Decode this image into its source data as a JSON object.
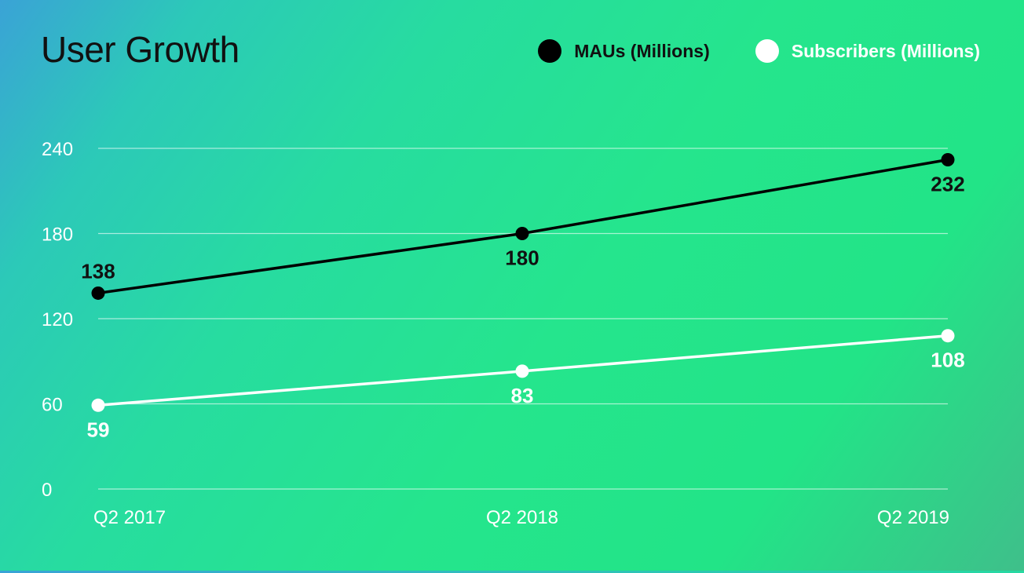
{
  "chart_data": {
    "type": "line",
    "title": "User Growth",
    "categories": [
      "Q2 2017",
      "Q2 2018",
      "Q2 2019"
    ],
    "ylim": [
      0,
      240
    ],
    "yticks": [
      0,
      60,
      120,
      180,
      240
    ],
    "grid": true,
    "legend_position": "top-right",
    "series": [
      {
        "name": "MAUs (Millions)",
        "color": "#000000",
        "values": [
          138,
          180,
          232
        ],
        "label_position": [
          "above",
          "below",
          "below"
        ]
      },
      {
        "name": "Subscribers (Millions)",
        "color": "#ffffff",
        "values": [
          59,
          83,
          108
        ],
        "label_position": [
          "below",
          "below",
          "below"
        ]
      }
    ]
  }
}
